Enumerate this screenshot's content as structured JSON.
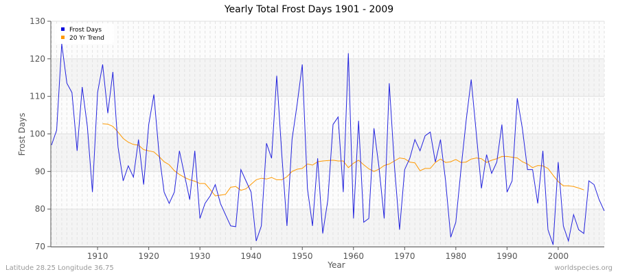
{
  "title": "Yearly Total Frost Days 1901 - 2009",
  "footer": {
    "left": "Latitude 28.25 Longitude 36.75",
    "right": "worldspecies.org"
  },
  "colors": {
    "series": "#2222dd",
    "trend": "#ff9900",
    "band": "#f2f2f2",
    "grid": "#dddddd",
    "axis": "#555555"
  },
  "chart_data": {
    "type": "line",
    "title": "Yearly Total Frost Days 1901 - 2009",
    "xlabel": "Year",
    "ylabel": "Frost Days",
    "xlim": [
      1901,
      2009
    ],
    "ylim": [
      70,
      130
    ],
    "xticks": [
      1910,
      1920,
      1930,
      1940,
      1950,
      1960,
      1970,
      1980,
      1990,
      2000
    ],
    "yticks": [
      70,
      80,
      90,
      100,
      110,
      120,
      130
    ],
    "grid": true,
    "legend": {
      "position": "top-left",
      "entries": [
        "Frost Days",
        "20 Yr Trend"
      ]
    },
    "series": [
      {
        "name": "Frost Days",
        "color": "#2222dd",
        "x_start": 1901,
        "values": [
          97,
          101,
          124,
          113.5,
          111,
          95.5,
          112.5,
          102,
          84.5,
          111,
          118.5,
          105.5,
          116.5,
          96.5,
          87.5,
          91.5,
          88.5,
          98.5,
          86.5,
          102.5,
          110.5,
          95,
          84.5,
          81.5,
          84.5,
          95.5,
          89,
          82.5,
          95.5,
          77.5,
          81.5,
          83.5,
          86.5,
          81.5,
          78.5,
          75.5,
          75.3,
          90.5,
          87.5,
          84.5,
          71.5,
          75.5,
          97.5,
          93.5,
          115.5,
          94.5,
          75.5,
          98.5,
          108,
          118.5,
          85.5,
          75.5,
          93.5,
          73.5,
          82.5,
          102.5,
          104.5,
          84.5,
          121.5,
          77.5,
          103.5,
          76.5,
          77.5,
          101.5,
          91,
          77.5,
          113.5,
          91.5,
          74.5,
          90.5,
          93.5,
          98.5,
          95.5,
          99.5,
          100.5,
          92.5,
          98.5,
          87.5,
          72.5,
          76.5,
          90.5,
          103.5,
          114.5,
          100,
          85.5,
          94.5,
          89.5,
          92.5,
          102.5,
          84.5,
          87.5,
          109.5,
          101.5,
          90.5,
          90.5,
          81.5,
          95.5,
          74.5,
          70.5,
          92.5,
          75.5,
          71.5,
          78.5,
          74.5,
          73.5,
          87.5,
          86.5,
          82.5,
          79.5
        ]
      },
      {
        "name": "20 Yr Trend",
        "color": "#ff9900",
        "x_start": 1911,
        "values": [
          102.7,
          102.6,
          102,
          100.5,
          98.8,
          97.8,
          97.2,
          97,
          95.8,
          95.5,
          95.2,
          94,
          92.6,
          91.8,
          90.2,
          89.2,
          88.4,
          87.8,
          87.4,
          86.8,
          86.8,
          85.2,
          83.5,
          83.7,
          83.9,
          85.8,
          86,
          85,
          85.4,
          86.6,
          87.8,
          88.2,
          88,
          88.4,
          87.8,
          87.8,
          88.6,
          90,
          90.6,
          90.8,
          92,
          91.7,
          92.6,
          92.8,
          92.9,
          93,
          92.8,
          92.8,
          91,
          92.2,
          93,
          91.8,
          90.7,
          90,
          90.6,
          91.6,
          92,
          92.8,
          93.6,
          93.4,
          92.5,
          92.3,
          90.2,
          90.8,
          90.8,
          92.4,
          93.3,
          92.4,
          92.6,
          93.2,
          92.4,
          92.5,
          93.3,
          93.6,
          93.4,
          92.4,
          93,
          93.4,
          94,
          94,
          93.8,
          93.6,
          92.6,
          92,
          91,
          91.6,
          91.5,
          90.8,
          89,
          87.3,
          86.2,
          86.2,
          86,
          85.6,
          85.1
        ]
      }
    ]
  }
}
